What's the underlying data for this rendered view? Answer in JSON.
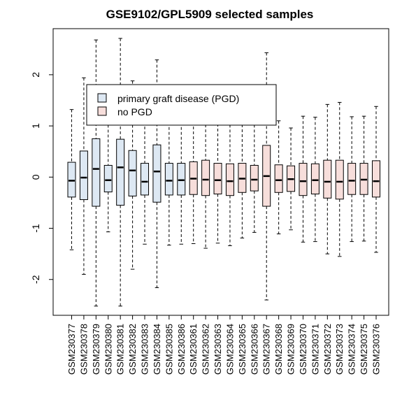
{
  "chart_data": {
    "type": "boxplot",
    "title": "GSE9102/GPL5909 selected samples",
    "xlabel": "",
    "ylabel": "",
    "ylim": [
      -2.7,
      2.9
    ],
    "yticks": [
      -2,
      -1,
      0,
      1,
      2
    ],
    "legend": {
      "position": "top-left",
      "entries": [
        {
          "name": "primary graft disease (PGD)",
          "color": "#dde8f3"
        },
        {
          "name": "no PGD",
          "color": "#f7dedb"
        }
      ]
    },
    "groups": {
      "PGD": {
        "color": "#dde8f3"
      },
      "no PGD": {
        "color": "#f7dedb"
      }
    },
    "samples": [
      {
        "name": "GSM230377",
        "group": "PGD",
        "min": -1.42,
        "q1": -0.39,
        "median": -0.07,
        "q3": 0.29,
        "max": 1.32
      },
      {
        "name": "GSM230378",
        "group": "PGD",
        "min": -1.9,
        "q1": -0.44,
        "median": -0.01,
        "q3": 0.51,
        "max": 1.94
      },
      {
        "name": "GSM230379",
        "group": "PGD",
        "min": -2.52,
        "q1": -0.57,
        "median": 0.16,
        "q3": 0.75,
        "max": 2.68
      },
      {
        "name": "GSM230380",
        "group": "PGD",
        "min": -1.07,
        "q1": -0.29,
        "median": -0.06,
        "q3": 0.23,
        "max": 1.5
      },
      {
        "name": "GSM230381",
        "group": "PGD",
        "min": -2.52,
        "q1": -0.55,
        "median": 0.19,
        "q3": 0.74,
        "max": 2.71
      },
      {
        "name": "GSM230382",
        "group": "PGD",
        "min": -1.8,
        "q1": -0.37,
        "median": 0.13,
        "q3": 0.52,
        "max": 1.88
      },
      {
        "name": "GSM230383",
        "group": "PGD",
        "min": -1.31,
        "q1": -0.35,
        "median": -0.09,
        "q3": 0.27,
        "max": 1.37
      },
      {
        "name": "GSM230384",
        "group": "PGD",
        "min": -2.16,
        "q1": -0.49,
        "median": 0.11,
        "q3": 0.63,
        "max": 2.29
      },
      {
        "name": "GSM230385",
        "group": "PGD",
        "min": -1.33,
        "q1": -0.35,
        "median": -0.07,
        "q3": 0.27,
        "max": 1.36
      },
      {
        "name": "GSM230386",
        "group": "PGD",
        "min": -1.31,
        "q1": -0.35,
        "median": -0.06,
        "q3": 0.27,
        "max": 1.36
      },
      {
        "name": "GSM230361",
        "group": "no PGD",
        "min": -1.3,
        "q1": -0.34,
        "median": -0.03,
        "q3": 0.3,
        "max": 1.37
      },
      {
        "name": "GSM230362",
        "group": "no PGD",
        "min": -1.39,
        "q1": -0.36,
        "median": -0.05,
        "q3": 0.33,
        "max": 1.41
      },
      {
        "name": "GSM230363",
        "group": "no PGD",
        "min": -1.29,
        "q1": -0.33,
        "median": -0.06,
        "q3": 0.27,
        "max": 1.33
      },
      {
        "name": "GSM230364",
        "group": "no PGD",
        "min": -1.34,
        "q1": -0.36,
        "median": -0.08,
        "q3": 0.26,
        "max": 1.31
      },
      {
        "name": "GSM230365",
        "group": "no PGD",
        "min": -1.19,
        "q1": -0.3,
        "median": -0.03,
        "q3": 0.27,
        "max": 1.22
      },
      {
        "name": "GSM230366",
        "group": "no PGD",
        "min": -1.08,
        "q1": -0.27,
        "median": -0.05,
        "q3": 0.23,
        "max": 1.12
      },
      {
        "name": "GSM230367",
        "group": "no PGD",
        "min": -2.4,
        "q1": -0.57,
        "median": 0.02,
        "q3": 0.62,
        "max": 2.43
      },
      {
        "name": "GSM230368",
        "group": "no PGD",
        "min": -1.11,
        "q1": -0.3,
        "median": -0.06,
        "q3": 0.24,
        "max": 1.1
      },
      {
        "name": "GSM230369",
        "group": "no PGD",
        "min": -1.03,
        "q1": -0.28,
        "median": -0.04,
        "q3": 0.22,
        "max": 0.96
      },
      {
        "name": "GSM230370",
        "group": "no PGD",
        "min": -1.27,
        "q1": -0.36,
        "median": -0.08,
        "q3": 0.27,
        "max": 1.19
      },
      {
        "name": "GSM230371",
        "group": "no PGD",
        "min": -1.26,
        "q1": -0.33,
        "median": -0.06,
        "q3": 0.26,
        "max": 1.17
      },
      {
        "name": "GSM230372",
        "group": "no PGD",
        "min": -1.5,
        "q1": -0.41,
        "median": -0.09,
        "q3": 0.33,
        "max": 1.42
      },
      {
        "name": "GSM230373",
        "group": "no PGD",
        "min": -1.55,
        "q1": -0.43,
        "median": -0.09,
        "q3": 0.33,
        "max": 1.46
      },
      {
        "name": "GSM230374",
        "group": "no PGD",
        "min": -1.26,
        "q1": -0.34,
        "median": -0.07,
        "q3": 0.27,
        "max": 1.18
      },
      {
        "name": "GSM230375",
        "group": "no PGD",
        "min": -1.25,
        "q1": -0.34,
        "median": -0.05,
        "q3": 0.27,
        "max": 1.19
      },
      {
        "name": "GSM230376",
        "group": "no PGD",
        "min": -1.47,
        "q1": -0.39,
        "median": -0.08,
        "q3": 0.32,
        "max": 1.38
      }
    ]
  }
}
